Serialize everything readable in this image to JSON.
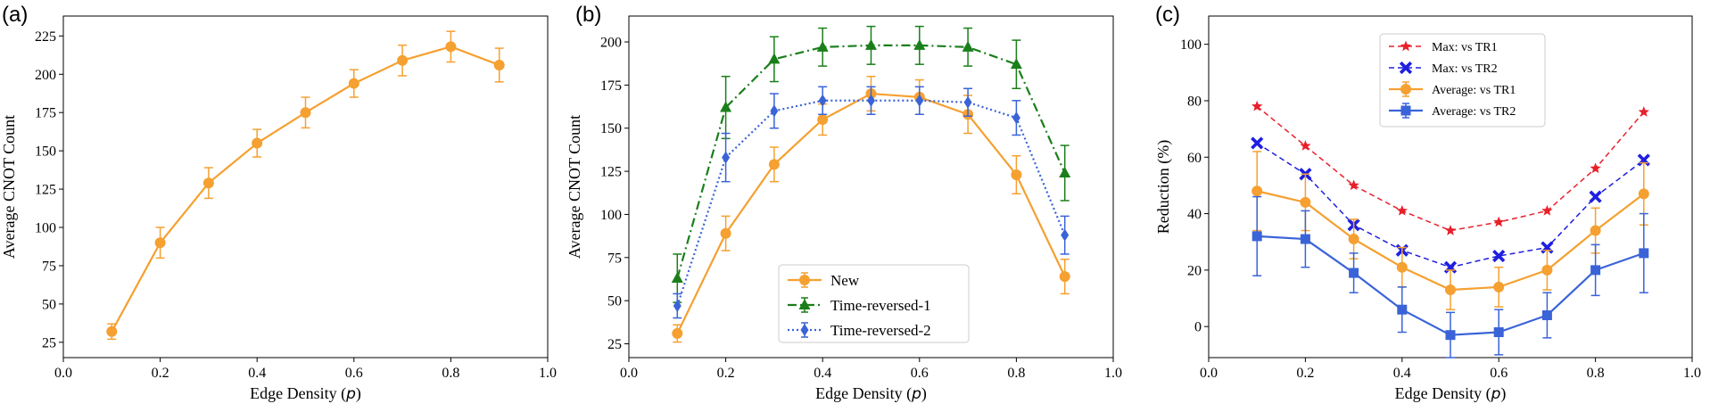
{
  "chart_data": [
    {
      "panel_label": "(a)",
      "type": "line",
      "xlabel_prefix": "Edge Density (",
      "xlabel_var": "p",
      "xlabel_suffix": ")",
      "ylabel": "Average CNOT Count",
      "xlim": [
        0.0,
        1.0
      ],
      "ylim": [
        15,
        238
      ],
      "xticks": [
        0.0,
        0.2,
        0.4,
        0.6,
        0.8,
        1.0
      ],
      "xtick_labels": [
        "0.0",
        "0.2",
        "0.4",
        "0.6",
        "0.8",
        "1.0"
      ],
      "yticks": [
        25,
        50,
        75,
        100,
        125,
        150,
        175,
        200,
        225
      ],
      "ytick_labels": [
        "25",
        "50",
        "75",
        "100",
        "125",
        "150",
        "175",
        "200",
        "225"
      ],
      "x": [
        0.1,
        0.2,
        0.3,
        0.4,
        0.5,
        0.6,
        0.7,
        0.8,
        0.9
      ],
      "series": [
        {
          "name": "",
          "color": "#F5A030",
          "line": "solid",
          "marker": "circle",
          "values": [
            32,
            90,
            129,
            155,
            175,
            194,
            209,
            218,
            206
          ],
          "errors": [
            5,
            10,
            10,
            9,
            10,
            9,
            10,
            10,
            11
          ]
        }
      ],
      "legend": null
    },
    {
      "panel_label": "(b)",
      "type": "line",
      "xlabel_prefix": "Edge Density (",
      "xlabel_var": "p",
      "xlabel_suffix": ")",
      "ylabel": "Average CNOT Count",
      "xlim": [
        0.0,
        1.0
      ],
      "ylim": [
        17,
        215
      ],
      "xticks": [
        0.0,
        0.2,
        0.4,
        0.6,
        0.8,
        1.0
      ],
      "xtick_labels": [
        "0.0",
        "0.2",
        "0.4",
        "0.6",
        "0.8",
        "1.0"
      ],
      "yticks": [
        25,
        50,
        75,
        100,
        125,
        150,
        175,
        200
      ],
      "ytick_labels": [
        "25",
        "50",
        "75",
        "100",
        "125",
        "150",
        "175",
        "200"
      ],
      "x": [
        0.1,
        0.2,
        0.3,
        0.4,
        0.5,
        0.6,
        0.7,
        0.8,
        0.9
      ],
      "series": [
        {
          "name": "New",
          "color": "#F5A030",
          "line": "solid",
          "marker": "circle",
          "values": [
            31,
            89,
            129,
            155,
            170,
            168,
            158,
            123,
            64
          ],
          "errors": [
            5,
            10,
            10,
            9,
            10,
            10,
            11,
            11,
            10
          ]
        },
        {
          "name": "Time-reversed-1",
          "color": "#1A7F1A",
          "line": "dashdot",
          "marker": "triangle",
          "values": [
            63,
            162,
            190,
            197,
            198,
            198,
            197,
            187,
            124
          ],
          "errors": [
            14,
            18,
            13,
            11,
            11,
            11,
            11,
            14,
            16
          ]
        },
        {
          "name": "Time-reversed-2",
          "color": "#3A63D8",
          "line": "dotted",
          "marker": "diamond",
          "values": [
            47,
            133,
            160,
            166,
            166,
            166,
            165,
            156,
            88
          ],
          "errors": [
            7,
            14,
            10,
            8,
            8,
            8,
            8,
            10,
            11
          ]
        }
      ],
      "legend": {
        "placement": "lower-center"
      }
    },
    {
      "panel_label": "(c)",
      "type": "line",
      "xlabel_prefix": "Edge Density (",
      "xlabel_var": "p",
      "xlabel_suffix": ")",
      "ylabel": "Reduction (%)",
      "xlim": [
        0.0,
        1.0
      ],
      "ylim": [
        -11,
        110
      ],
      "xticks": [
        0.0,
        0.2,
        0.4,
        0.6,
        0.8,
        1.0
      ],
      "xtick_labels": [
        "0.0",
        "0.2",
        "0.4",
        "0.6",
        "0.8",
        "1.0"
      ],
      "yticks": [
        0,
        20,
        40,
        60,
        80,
        100
      ],
      "ytick_labels": [
        "0",
        "20",
        "40",
        "60",
        "80",
        "100"
      ],
      "x": [
        0.1,
        0.2,
        0.3,
        0.4,
        0.5,
        0.6,
        0.7,
        0.8,
        0.9
      ],
      "series": [
        {
          "name": "Max: vs TR1",
          "color": "#E8202A",
          "line": "dashed",
          "marker": "star",
          "values": [
            78,
            64,
            50,
            41,
            34,
            37,
            41,
            56,
            76
          ],
          "errors": null
        },
        {
          "name": "Max: vs TR2",
          "color": "#1F1FE0",
          "line": "dashed",
          "marker": "x",
          "values": [
            65,
            54,
            36,
            27,
            21,
            25,
            28,
            46,
            59
          ],
          "errors": null
        },
        {
          "name": "Average: vs TR1",
          "color": "#F5A030",
          "line": "solid",
          "marker": "circle",
          "values": [
            48,
            44,
            31,
            21,
            13,
            14,
            20,
            34,
            47
          ],
          "errors": [
            14,
            10,
            7,
            7,
            7,
            7,
            7,
            8,
            11
          ]
        },
        {
          "name": "Average: vs TR2",
          "color": "#3A63D8",
          "line": "solid",
          "marker": "square",
          "values": [
            32,
            31,
            19,
            6,
            -3,
            -2,
            4,
            20,
            26
          ],
          "errors": [
            14,
            10,
            7,
            8,
            8,
            8,
            8,
            9,
            14
          ]
        }
      ],
      "legend": {
        "placement": "top-center"
      }
    }
  ]
}
